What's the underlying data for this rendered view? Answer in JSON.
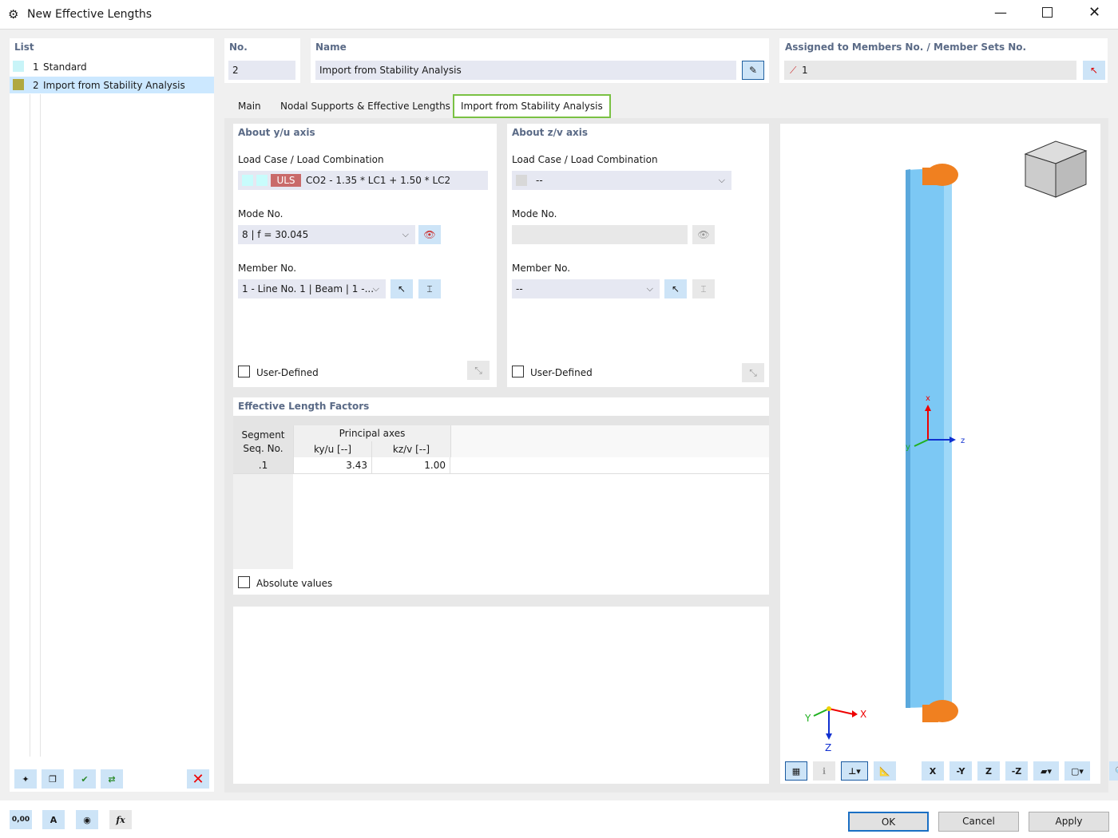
{
  "window": {
    "title": "New Effective Lengths"
  },
  "list": {
    "header": "List",
    "items": [
      {
        "no": "1",
        "label": "Standard",
        "color": "#c8f4f8"
      },
      {
        "no": "2",
        "label": "Import from Stability Analysis",
        "color": "#b0a840",
        "selected": true
      }
    ]
  },
  "no": {
    "label": "No.",
    "value": "2"
  },
  "name": {
    "label": "Name",
    "value": "Import from Stability Analysis"
  },
  "assigned": {
    "label": "Assigned to Members No. / Member Sets No.",
    "value": "1"
  },
  "tabs": [
    {
      "label": "Main"
    },
    {
      "label": "Nodal Supports & Effective Lengths"
    },
    {
      "label": "Import from Stability Analysis",
      "active": true
    }
  ],
  "y_axis": {
    "title": "About y/u axis",
    "lc_label": "Load Case / Load Combination",
    "lc_badge": "ULS",
    "lc_value": "CO2 - 1.35 * LC1 + 1.50 * LC2",
    "mode_label": "Mode No.",
    "mode_value": "8 | f = 30.045",
    "member_label": "Member No.",
    "member_value": "1 - Line No. 1 | Beam | 1 -...",
    "user_defined": "User-Defined"
  },
  "z_axis": {
    "title": "About z/v axis",
    "lc_label": "Load Case / Load Combination",
    "lc_value": "--",
    "mode_label": "Mode No.",
    "mode_value": "",
    "member_label": "Member No.",
    "member_value": "--",
    "user_defined": "User-Defined"
  },
  "factors": {
    "title": "Effective Length Factors",
    "col_segment": [
      "Segment",
      "Seq. No."
    ],
    "group": "Principal axes",
    "col_ky": "ky/u [--]",
    "col_kz": "kz/v [--]",
    "rows": [
      {
        "seg": ".1",
        "ky": "3.43",
        "kz": "1.00"
      }
    ],
    "absolute": "Absolute values"
  },
  "view": {
    "axes": {
      "x": "x",
      "y": "y",
      "z": "z"
    },
    "global": {
      "x": "X",
      "y": "Y",
      "z": "Z"
    },
    "toolbar": [
      "X",
      "-Y",
      "Z",
      "-Z"
    ],
    "uls_color": "#c96a6a",
    "accent_tab": "#7ac143"
  },
  "footer": {
    "ok": "OK",
    "cancel": "Cancel",
    "apply": "Apply",
    "decimal_icon_text": "0,00"
  }
}
